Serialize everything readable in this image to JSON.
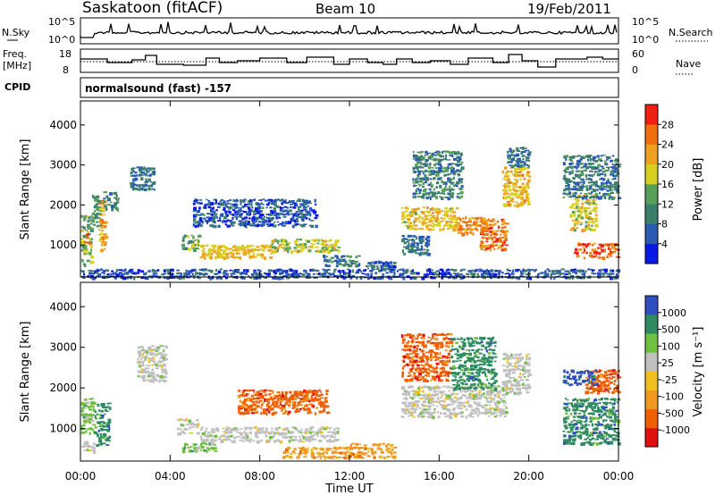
{
  "header": {
    "station": "Saskatoon (fitACF)",
    "beam": "Beam 10",
    "date": "19/Feb/2011"
  },
  "panels": {
    "noise": {
      "left_label": "N.Sky",
      "left_ticks": [
        "10^5",
        "10^0"
      ],
      "right_label": "N.Search",
      "right_ticks": [
        "10^5",
        "10^0"
      ]
    },
    "freq": {
      "left_label_1": "Freq.",
      "left_label_2": "[MHz]",
      "left_ticks": [
        "18",
        "8"
      ],
      "right_label": "Nave",
      "right_ticks": [
        "60",
        "0"
      ]
    },
    "cpid": {
      "label": "CPID",
      "text": "normalsound (fast) -157"
    }
  },
  "colors": {
    "power_scale": [
      "#0a18e6",
      "#2a5ab4",
      "#3c7f6a",
      "#58a05a",
      "#d8d020",
      "#f0a020",
      "#f07010",
      "#ef2010"
    ],
    "velocity_scale": [
      "#e01010",
      "#f06000",
      "#f09820",
      "#f0c020",
      "#c0c0c0",
      "#70c040",
      "#2e8a60",
      "#2f4fc0"
    ]
  },
  "chart_data": [
    {
      "type": "heatmap",
      "name": "power",
      "ylabel": "Slant Range [km]",
      "yticks": [
        "4000",
        "3000",
        "2000",
        "1000"
      ],
      "ylim": [
        200,
        4600
      ],
      "xlim": [
        0,
        24
      ],
      "colorbar_label": "Power [dB]",
      "colorbar_ticks": [
        "28",
        "24",
        "20",
        "16",
        "12",
        "8",
        "4"
      ],
      "colorbar_range": [
        0,
        32
      ],
      "blobs": [
        {
          "t0": 0.0,
          "t1": 0.5,
          "r0": 500,
          "r1": 1800,
          "v": 14
        },
        {
          "t0": 0.1,
          "t1": 0.4,
          "r0": 1050,
          "r1": 1350,
          "v": 26
        },
        {
          "t0": 0.5,
          "t1": 0.9,
          "r0": 1500,
          "r1": 2300,
          "v": 12
        },
        {
          "t0": 0.8,
          "t1": 1.1,
          "r0": 900,
          "r1": 2200,
          "v": 22
        },
        {
          "t0": 1.0,
          "t1": 1.7,
          "r0": 1900,
          "r1": 2400,
          "v": 10
        },
        {
          "t0": 2.2,
          "t1": 3.3,
          "r0": 2400,
          "r1": 3000,
          "v": 8
        },
        {
          "t0": 4.5,
          "t1": 5.3,
          "r0": 900,
          "r1": 1300,
          "v": 14
        },
        {
          "t0": 5.3,
          "t1": 8.5,
          "r0": 700,
          "r1": 1050,
          "v": 20
        },
        {
          "t0": 8.5,
          "t1": 11.5,
          "r0": 850,
          "r1": 1200,
          "v": 17
        },
        {
          "t0": 5.0,
          "t1": 10.5,
          "r0": 1500,
          "r1": 2200,
          "v": 6
        },
        {
          "t0": 10.8,
          "t1": 12.5,
          "r0": 500,
          "r1": 800,
          "v": 10
        },
        {
          "t0": 12.7,
          "t1": 14.0,
          "r0": 400,
          "r1": 650,
          "v": 6
        },
        {
          "t0": 14.3,
          "t1": 16.8,
          "r0": 1400,
          "r1": 2000,
          "v": 19
        },
        {
          "t0": 16.8,
          "t1": 18.2,
          "r0": 1300,
          "r1": 1750,
          "v": 23
        },
        {
          "t0": 14.8,
          "t1": 17.0,
          "r0": 2200,
          "r1": 3400,
          "v": 10
        },
        {
          "t0": 14.3,
          "t1": 15.5,
          "r0": 800,
          "r1": 1300,
          "v": 8
        },
        {
          "t0": 17.8,
          "t1": 19.0,
          "r0": 900,
          "r1": 1700,
          "v": 26
        },
        {
          "t0": 18.8,
          "t1": 20.0,
          "r0": 2000,
          "r1": 3000,
          "v": 21
        },
        {
          "t0": 19.0,
          "t1": 20.0,
          "r0": 3000,
          "r1": 3500,
          "v": 9
        },
        {
          "t0": 21.8,
          "t1": 23.0,
          "r0": 1400,
          "r1": 2300,
          "v": 18
        },
        {
          "t0": 22.0,
          "t1": 24.0,
          "r0": 700,
          "r1": 1100,
          "v": 27
        },
        {
          "t0": 21.5,
          "t1": 24.0,
          "r0": 2200,
          "r1": 3300,
          "v": 9
        },
        {
          "t0": 0.0,
          "t1": 24.0,
          "r0": 200,
          "r1": 450,
          "v": 6
        }
      ]
    },
    {
      "type": "heatmap",
      "name": "velocity",
      "ylabel": "Slant Range [km]",
      "yticks": [
        "4000",
        "3000",
        "2000",
        "1000"
      ],
      "ylim": [
        200,
        4600
      ],
      "xlim": [
        0,
        24
      ],
      "xlabel": "Time UT",
      "xticks": [
        "00:00",
        "04:00",
        "08:00",
        "12:00",
        "16:00",
        "20:00",
        "00:00"
      ],
      "colorbar_label": "Velocity [m s⁻¹]",
      "colorbar_ticks": [
        "1000",
        "500",
        "100",
        "25",
        "-25",
        "-100",
        "-500",
        "-1000"
      ],
      "blobs": [
        {
          "t0": 0.0,
          "t1": 0.6,
          "r0": 900,
          "r1": 1800,
          "v": 5
        },
        {
          "t0": 0.0,
          "t1": 0.6,
          "r0": 450,
          "r1": 750,
          "v": 4
        },
        {
          "t0": 0.6,
          "t1": 1.3,
          "r0": 600,
          "r1": 1700,
          "v": 6
        },
        {
          "t0": 2.5,
          "t1": 3.8,
          "r0": 2200,
          "r1": 3100,
          "v": 4
        },
        {
          "t0": 4.3,
          "t1": 5.3,
          "r0": 900,
          "r1": 1300,
          "v": 4
        },
        {
          "t0": 5.3,
          "t1": 11.5,
          "r0": 700,
          "r1": 1100,
          "v": 4
        },
        {
          "t0": 4.5,
          "t1": 6.0,
          "r0": 450,
          "r1": 700,
          "v": 5
        },
        {
          "t0": 7.0,
          "t1": 11.0,
          "r0": 1400,
          "r1": 2000,
          "v": 1
        },
        {
          "t0": 9.0,
          "t1": 12.0,
          "r0": 300,
          "r1": 600,
          "v": 2
        },
        {
          "t0": 12.0,
          "t1": 14.0,
          "r0": 300,
          "r1": 700,
          "v": 2
        },
        {
          "t0": 14.3,
          "t1": 19.0,
          "r0": 1300,
          "r1": 2100,
          "v": 4
        },
        {
          "t0": 14.3,
          "t1": 16.5,
          "r0": 2200,
          "r1": 3400,
          "v": 1
        },
        {
          "t0": 16.5,
          "t1": 18.5,
          "r0": 2000,
          "r1": 3300,
          "v": 6
        },
        {
          "t0": 18.8,
          "t1": 20.0,
          "r0": 1900,
          "r1": 2900,
          "v": 4
        },
        {
          "t0": 21.5,
          "t1": 24.0,
          "r0": 650,
          "r1": 1800,
          "v": 6
        },
        {
          "t0": 22.5,
          "t1": 24.0,
          "r0": 1900,
          "r1": 2500,
          "v": 1
        },
        {
          "t0": 21.5,
          "t1": 23.0,
          "r0": 2100,
          "r1": 2500,
          "v": 7
        }
      ]
    }
  ]
}
